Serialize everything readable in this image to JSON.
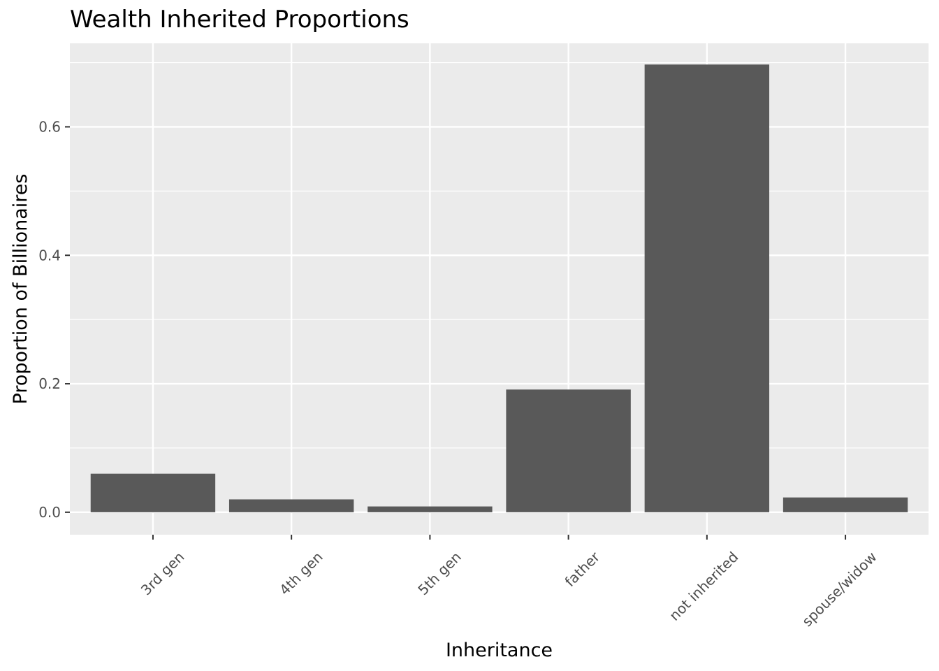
{
  "chart_data": {
    "type": "bar",
    "title": "Wealth Inherited Proportions",
    "xlabel": "Inheritance",
    "ylabel": "Proportion of Billionaires",
    "categories": [
      "3rd gen",
      "4th gen",
      "5th gen",
      "father",
      "not inherited",
      "spouse/widow"
    ],
    "values": [
      0.06,
      0.02,
      0.009,
      0.191,
      0.697,
      0.023
    ],
    "ylim": [
      -0.035,
      0.73
    ],
    "yticks": [
      0.0,
      0.2,
      0.4,
      0.6
    ],
    "ytick_labels": [
      "0.0",
      "0.2",
      "0.4",
      "0.6"
    ],
    "grid": true,
    "legend": "none",
    "colors": {
      "bar": "#595959",
      "panel": "#ebebeb",
      "grid": "#ffffff"
    }
  }
}
